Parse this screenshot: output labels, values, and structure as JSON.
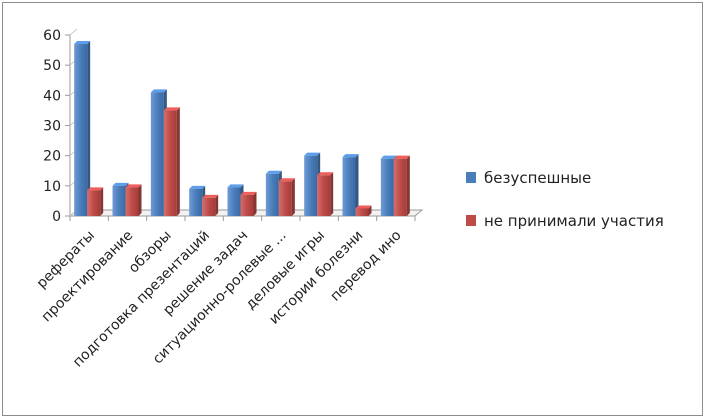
{
  "chart_data": {
    "type": "bar",
    "categories": [
      "рефераты",
      "проектирование",
      "обзоры",
      "подготовка презентаций",
      "решение  задач",
      "ситуационно-ролевые ...",
      "деловые игры",
      "истории болезни",
      "перевод ино"
    ],
    "series": [
      {
        "name": "безуспешные",
        "color": "#4a7ebb",
        "values": [
          57,
          10,
          41,
          9,
          9.5,
          14,
          20,
          19.5,
          19
        ]
      },
      {
        "name": "не принимали участия",
        "color": "#be4b48",
        "values": [
          8.5,
          9.5,
          35,
          6,
          7,
          11.5,
          13.5,
          2.5,
          19
        ]
      }
    ],
    "ylim": [
      0,
      60
    ],
    "yticks": [
      0,
      10,
      20,
      30,
      40,
      50,
      60
    ],
    "grid": false,
    "legend_position": "right",
    "xtick_rotation": -45
  }
}
